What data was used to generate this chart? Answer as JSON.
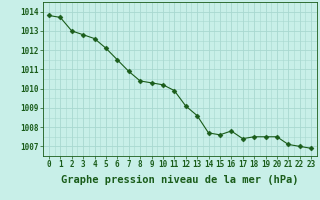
{
  "x": [
    0,
    1,
    2,
    3,
    4,
    5,
    6,
    7,
    8,
    9,
    10,
    11,
    12,
    13,
    14,
    15,
    16,
    17,
    18,
    19,
    20,
    21,
    22,
    23
  ],
  "y": [
    1013.8,
    1013.7,
    1013.0,
    1012.8,
    1012.6,
    1012.1,
    1011.5,
    1010.9,
    1010.4,
    1010.3,
    1010.2,
    1009.9,
    1009.1,
    1008.6,
    1007.7,
    1007.6,
    1007.8,
    1007.4,
    1007.5,
    1007.5,
    1007.5,
    1007.1,
    1007.0,
    1006.9
  ],
  "ylim": [
    1006.7,
    1014.2
  ],
  "yticks": [
    1007,
    1008,
    1009,
    1010,
    1011,
    1012,
    1013,
    1014
  ],
  "xticks": [
    0,
    1,
    2,
    3,
    4,
    5,
    6,
    7,
    8,
    9,
    10,
    11,
    12,
    13,
    14,
    15,
    16,
    17,
    18,
    19,
    20,
    21,
    22,
    23
  ],
  "line_color": "#1a5c1a",
  "marker_color": "#1a5c1a",
  "bg_color": "#c8efe8",
  "grid_color": "#a8d8d0",
  "xlabel": "Graphe pression niveau de la mer (hPa)",
  "xlabel_color": "#1a5c1a",
  "tick_label_color": "#1a5c1a",
  "tick_label_fontsize": 5.5,
  "xlabel_fontsize": 7.5,
  "marker_size": 2.5,
  "linewidth": 0.8
}
